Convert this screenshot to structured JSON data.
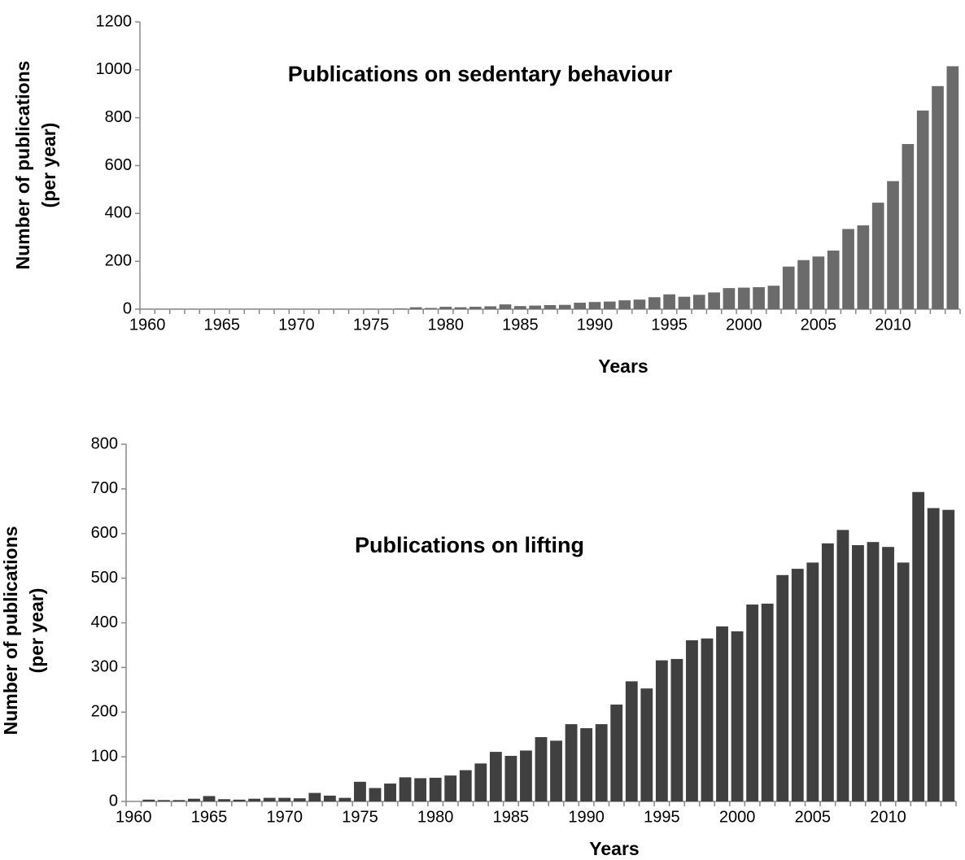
{
  "chart_data": [
    {
      "type": "bar",
      "title": "Publications on sedentary behaviour",
      "xlabel": "Years",
      "ylabel": [
        "Number of publications",
        "(per year)"
      ],
      "categories": [
        1960,
        null,
        null,
        null,
        null,
        1965,
        null,
        null,
        null,
        null,
        1970,
        null,
        null,
        null,
        null,
        1975,
        null,
        null,
        null,
        null,
        1980,
        null,
        null,
        null,
        null,
        1985,
        null,
        null,
        null,
        null,
        1990,
        null,
        null,
        null,
        null,
        1995,
        null,
        null,
        null,
        null,
        2000,
        null,
        null,
        null,
        null,
        2005,
        null,
        null,
        null,
        null,
        2010,
        null,
        null,
        null,
        null
      ],
      "values": [
        1,
        1,
        1,
        1,
        1,
        1,
        1,
        1,
        1,
        1,
        1,
        1,
        1,
        1,
        1,
        2,
        2,
        3,
        8,
        5,
        10,
        8,
        10,
        12,
        20,
        13,
        15,
        17,
        18,
        27,
        30,
        32,
        37,
        40,
        50,
        62,
        52,
        60,
        70,
        88,
        90,
        92,
        98,
        178,
        205,
        220,
        245,
        335,
        350,
        445,
        535,
        690,
        830,
        932,
        1015
      ],
      "color": "#6b6b6b",
      "ylim": [
        0,
        1200
      ],
      "yticks": [
        0,
        200,
        400,
        600,
        800,
        1000,
        1200
      ],
      "grid": false
    },
    {
      "type": "bar",
      "title": "Publications on lifting",
      "xlabel": "Years",
      "ylabel": [
        "Number of publications",
        "(per year)"
      ],
      "categories": [
        1960,
        null,
        null,
        null,
        null,
        1965,
        null,
        null,
        null,
        null,
        1970,
        null,
        null,
        null,
        null,
        1975,
        null,
        null,
        null,
        null,
        1980,
        null,
        null,
        null,
        null,
        1985,
        null,
        null,
        null,
        null,
        1990,
        null,
        null,
        null,
        null,
        1995,
        null,
        null,
        null,
        null,
        2000,
        null,
        null,
        null,
        null,
        2005,
        null,
        null,
        null,
        null,
        2010,
        null,
        null,
        null,
        null
      ],
      "values": [
        0,
        4,
        3,
        3,
        6,
        12,
        5,
        4,
        6,
        8,
        8,
        7,
        19,
        13,
        8,
        44,
        30,
        40,
        54,
        52,
        53,
        58,
        70,
        85,
        111,
        102,
        114,
        144,
        136,
        173,
        164,
        173,
        217,
        269,
        253,
        316,
        319,
        361,
        365,
        392,
        381,
        441,
        443,
        507,
        521,
        535,
        578,
        608,
        574,
        581,
        570,
        535,
        693,
        657,
        653
      ],
      "color": "#404040",
      "ylim": [
        0,
        800
      ],
      "yticks": [
        0,
        100,
        200,
        300,
        400,
        500,
        600,
        700,
        800
      ],
      "grid": false
    }
  ]
}
